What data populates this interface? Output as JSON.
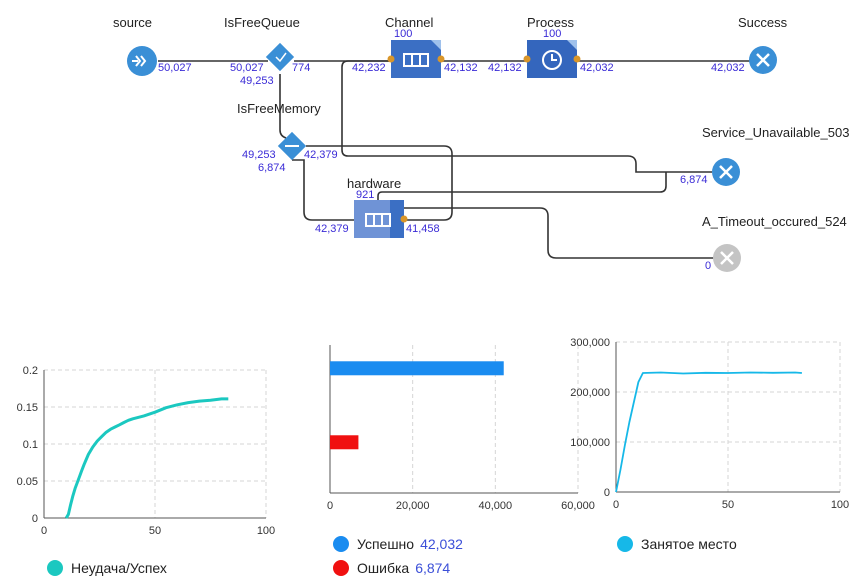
{
  "diagram": {
    "nodes": {
      "source": {
        "label": "source",
        "out": "50,027"
      },
      "isfreequeue": {
        "label": "IsFreeQueue",
        "in": "50,027",
        "out_down": "49,253",
        "out_right": "774"
      },
      "isfreememory": {
        "label": "IsFreeMemory",
        "in": "49,253",
        "out_right": "42,379",
        "out_down": "6,874"
      },
      "channel": {
        "label": "Channel",
        "cap": "100",
        "in": "42,232",
        "out": "42,132"
      },
      "process": {
        "label": "Process",
        "cap": "100",
        "in": "42,132",
        "out": "42,032"
      },
      "success": {
        "label": "Success",
        "in": "42,032"
      },
      "hardware": {
        "label": "hardware",
        "cap": "921",
        "in": "42,379",
        "out": "41,458"
      },
      "service_unavailable": {
        "label": "Service_Unavailable_503",
        "in": "6,874"
      },
      "timeout": {
        "label": "A_Timeout_occured_524",
        "in": "0"
      }
    },
    "colors": {
      "node_blue": "#3a8fd6",
      "queue_blue": "#3b6fc4",
      "process_blue": "#3466bd",
      "port": "#d9962a",
      "disabled": "#c4c4c4",
      "number": "#3a2bd6"
    }
  },
  "charts": [
    {
      "id": "ratio",
      "chart_data": {
        "type": "line",
        "x": [
          10,
          11,
          12,
          13,
          14,
          15,
          16,
          17,
          18,
          19,
          20,
          22,
          24,
          26,
          28,
          30,
          32,
          34,
          36,
          38,
          40,
          45,
          50,
          55,
          60,
          65,
          70,
          75,
          80,
          83
        ],
        "series": [
          {
            "values": [
              0,
              0.005,
              0.018,
              0.03,
              0.04,
              0.048,
              0.056,
              0.064,
              0.072,
              0.079,
              0.086,
              0.096,
              0.104,
              0.11,
              0.116,
              0.12,
              0.123,
              0.126,
              0.129,
              0.132,
              0.134,
              0.138,
              0.143,
              0.149,
              0.153,
              0.156,
              0.158,
              0.159,
              0.161,
              0.161
            ],
            "color": "#1bc8c0"
          }
        ],
        "xlim": [
          0,
          100
        ],
        "ylim": [
          0,
          0.2
        ],
        "xticks": [
          "0",
          "50",
          "100"
        ],
        "yticks": [
          "0",
          "0.05",
          "0.1",
          "0.15",
          "0.2"
        ],
        "grid": true
      },
      "legend": {
        "label": "Неудача/Успех",
        "color": "#1bc8c0"
      }
    },
    {
      "id": "outcomes",
      "chart_data": {
        "type": "bar",
        "orientation": "horizontal",
        "categories": [
          "Успешно",
          "Ошибка"
        ],
        "values": [
          42032,
          6874
        ],
        "colors": [
          "#1a8cf0",
          "#f01010"
        ],
        "xlim": [
          0,
          60000
        ],
        "xticks": [
          "0",
          "20,000",
          "40,000",
          "60,000"
        ],
        "grid": true
      },
      "legend": [
        {
          "label": "Успешно",
          "value": "42,032",
          "color": "#1a8cf0"
        },
        {
          "label": "Ошибка",
          "value": "6,874",
          "color": "#f01010"
        }
      ]
    },
    {
      "id": "occupied",
      "chart_data": {
        "type": "line",
        "x": [
          0,
          2,
          4,
          6,
          8,
          10,
          12,
          20,
          30,
          40,
          50,
          60,
          70,
          80,
          83
        ],
        "series": [
          {
            "values": [
              0,
              45000,
              95000,
              140000,
              180000,
              220000,
              238000,
              239000,
              237000,
              238500,
              238000,
              239000,
              238500,
              239000,
              238000
            ],
            "color": "#16b8e8"
          }
        ],
        "xlim": [
          0,
          100
        ],
        "ylim": [
          0,
          300000
        ],
        "xticks": [
          "0",
          "50",
          "100"
        ],
        "yticks": [
          "0",
          "100,000",
          "200,000",
          "300,000"
        ],
        "grid": true
      },
      "legend": {
        "label": "Занятое место",
        "color": "#16b8e8"
      }
    }
  ]
}
